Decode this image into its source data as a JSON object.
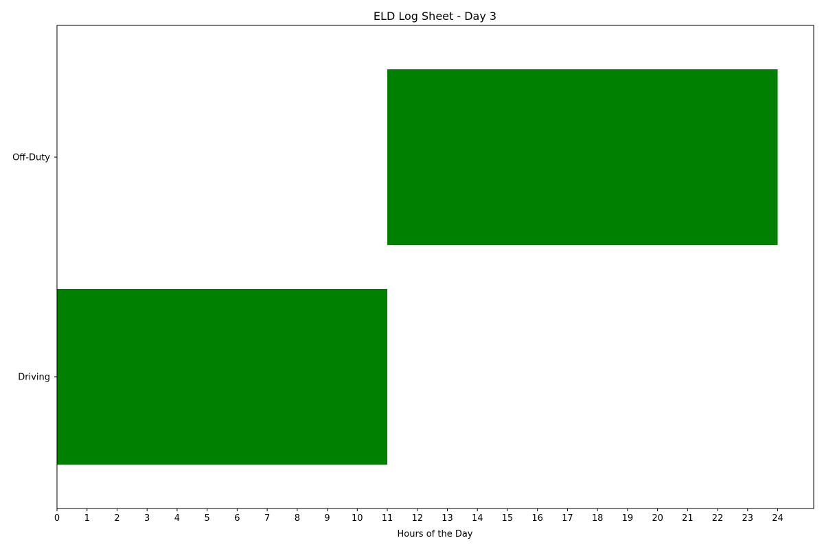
{
  "chart_data": {
    "type": "bar",
    "orientation": "horizontal",
    "title": "ELD Log Sheet - Day 3",
    "xlabel": "Hours of the Day",
    "ylabel": "",
    "xlim": [
      0,
      25.2
    ],
    "xticks": [
      "0",
      "1",
      "2",
      "3",
      "4",
      "5",
      "6",
      "7",
      "8",
      "9",
      "10",
      "11",
      "12",
      "13",
      "14",
      "15",
      "16",
      "17",
      "18",
      "19",
      "20",
      "21",
      "22",
      "23",
      "24"
    ],
    "categories": [
      "Driving",
      "Off-Duty"
    ],
    "segments": [
      {
        "category": "Driving",
        "start": 0,
        "end": 11
      },
      {
        "category": "Off-Duty",
        "start": 11,
        "end": 24
      }
    ],
    "bar_color": "#008000",
    "grid": false,
    "legend": "none"
  }
}
